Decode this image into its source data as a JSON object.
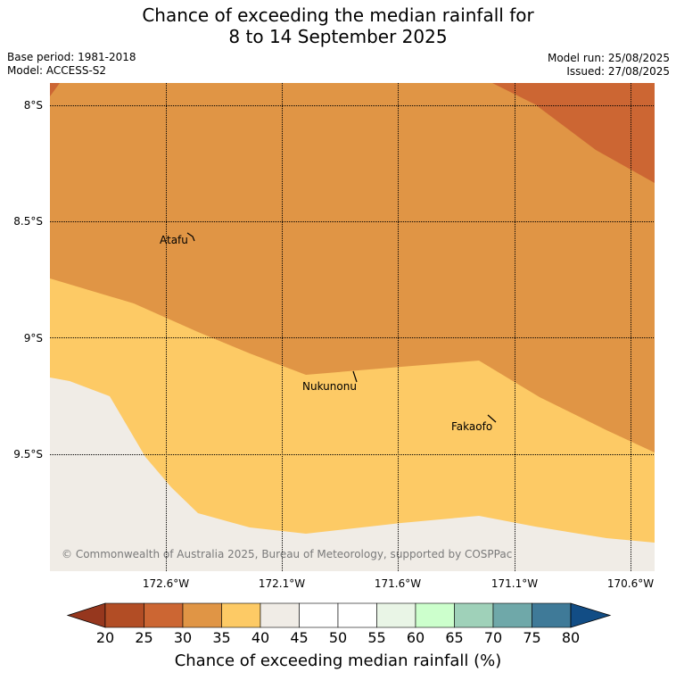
{
  "title_line1": "Chance of exceeding the median rainfall for",
  "title_line2": "8 to 14 September 2025",
  "meta": {
    "base_period": "Base period: 1981-2018",
    "model": "Model: ACCESS-S2",
    "model_run": "Model run: 25/08/2025",
    "issued": "Issued: 27/08/2025"
  },
  "latitude_labels": [
    "8°S",
    "8.5°S",
    "9°S",
    "9.5°S"
  ],
  "longitude_labels": [
    "172.6°W",
    "172.1°W",
    "171.6°W",
    "171.1°W",
    "170.6°W"
  ],
  "places": [
    "Atafu",
    "Nukunonu",
    "Fakaofo"
  ],
  "copyright": "© Commonwealth of Australia 2025, Bureau of Meteorology, supported by COSPPac",
  "colorbar": {
    "ticks": [
      "20",
      "25",
      "30",
      "35",
      "40",
      "45",
      "50",
      "55",
      "60",
      "65",
      "70",
      "75",
      "80"
    ],
    "colors": [
      "#b24d25",
      "#cc6633",
      "#e09545",
      "#fdca65",
      "#f0ece6",
      "#ffffff",
      "#ffffff",
      "#e9f5e6",
      "#ccffcc",
      "#9fd1b9",
      "#6fa8a9",
      "#3f7a98"
    ],
    "under_color": "#96371e",
    "over_color": "#124d85",
    "label": "Chance of exceeding median rainfall (%)"
  },
  "zones": {
    "land_sea_background": "#f0ece6",
    "band_35_40": "#fdca65",
    "band_30_35": "#e09545",
    "band_25_30": "#cc6633"
  }
}
